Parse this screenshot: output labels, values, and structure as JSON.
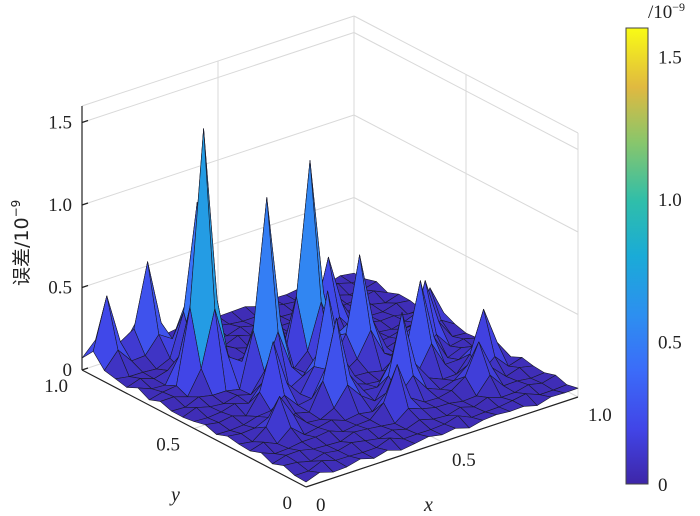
{
  "chart_data": {
    "type": "surface",
    "title": "",
    "xlabel": "x",
    "ylabel": "y",
    "zlabel": "误差/10",
    "zlabel_exponent": "−9",
    "x_ticks": [
      "0",
      "0.5",
      "1.0"
    ],
    "y_ticks": [
      "0",
      "0.5",
      "1.0"
    ],
    "z_ticks": [
      "0",
      "0.5",
      "1.0",
      "1.5"
    ],
    "xlim": [
      0,
      1
    ],
    "ylim": [
      0,
      1
    ],
    "zlim": [
      0,
      1.6
    ],
    "colormap": "parula",
    "colorbar": {
      "unit_prefix": "/10",
      "unit_exponent": "−9",
      "ticks": [
        "0",
        "0.5",
        "1.0",
        "1.5"
      ],
      "range": [
        0,
        1.6
      ]
    },
    "grid": true,
    "grid_x": [
      0,
      0.05,
      0.1,
      0.15,
      0.2,
      0.25,
      0.3,
      0.35,
      0.4,
      0.45,
      0.5,
      0.55,
      0.6,
      0.65,
      0.7,
      0.75,
      0.8,
      0.85,
      0.9,
      0.95,
      1.0
    ],
    "grid_y": [
      0,
      0.05,
      0.1,
      0.15,
      0.2,
      0.25,
      0.3,
      0.35,
      0.4,
      0.45,
      0.5,
      0.55,
      0.6,
      0.65,
      0.7,
      0.75,
      0.8,
      0.85,
      0.9,
      0.95,
      1.0
    ],
    "peaks": [
      {
        "x": 0.2,
        "y": 0.7,
        "z": 1.55
      },
      {
        "x": 0.35,
        "y": 0.6,
        "z": 1.1
      },
      {
        "x": 0.55,
        "y": 0.65,
        "z": 1.2
      },
      {
        "x": 0.3,
        "y": 0.85,
        "z": 0.95
      },
      {
        "x": 0.05,
        "y": 0.95,
        "z": 0.45
      },
      {
        "x": 0.2,
        "y": 0.95,
        "z": 0.55
      },
      {
        "x": 0.65,
        "y": 0.55,
        "z": 0.65
      },
      {
        "x": 0.45,
        "y": 0.45,
        "z": 0.6
      },
      {
        "x": 0.75,
        "y": 0.4,
        "z": 0.55
      },
      {
        "x": 0.6,
        "y": 0.3,
        "z": 0.5
      },
      {
        "x": 0.85,
        "y": 0.5,
        "z": 0.4
      },
      {
        "x": 0.4,
        "y": 0.35,
        "z": 0.55
      },
      {
        "x": 0.9,
        "y": 0.3,
        "z": 0.35
      },
      {
        "x": 0.25,
        "y": 0.45,
        "z": 0.4
      },
      {
        "x": 0.7,
        "y": 0.75,
        "z": 0.45
      },
      {
        "x": 0.5,
        "y": 0.2,
        "z": 0.3
      },
      {
        "x": 0.15,
        "y": 0.3,
        "z": 0.25
      },
      {
        "x": 0.8,
        "y": 0.2,
        "z": 0.3
      },
      {
        "x": 0.95,
        "y": 0.6,
        "z": 0.25
      }
    ]
  }
}
